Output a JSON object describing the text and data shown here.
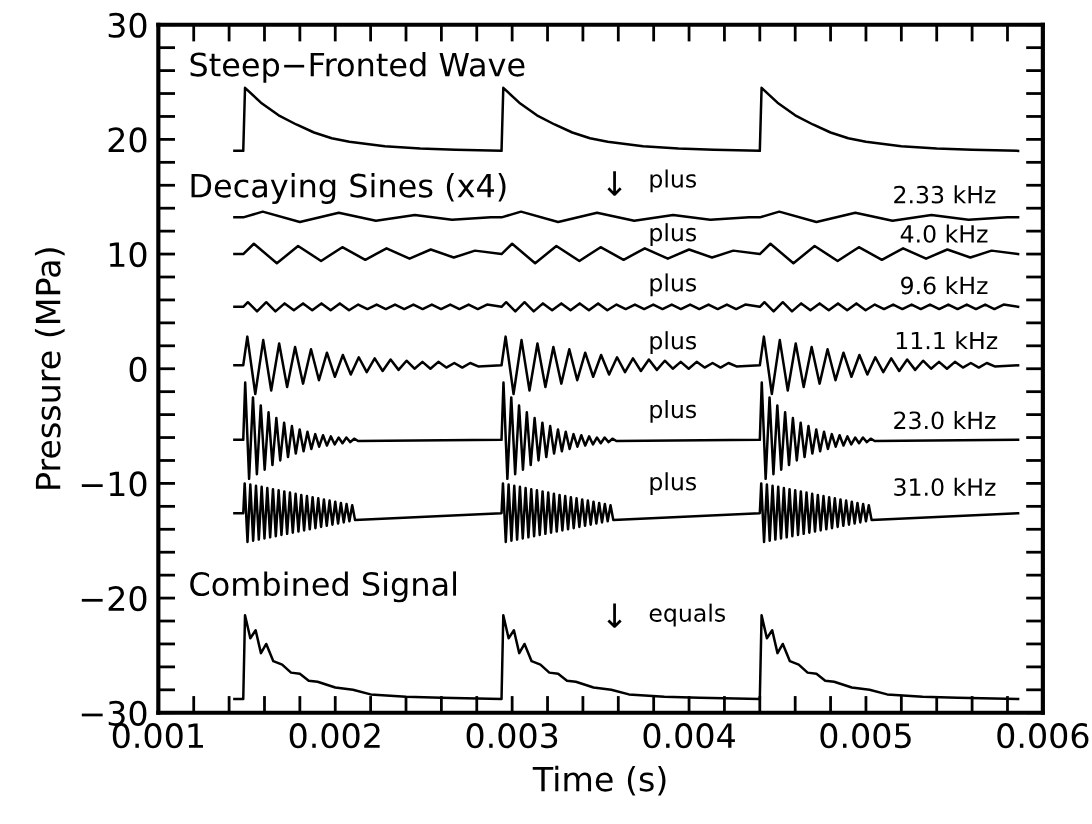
{
  "chart_data": {
    "type": "line",
    "xlabel": "Time (s)",
    "ylabel": "Pressure (MPa)",
    "xlim": [
      0.001,
      0.006
    ],
    "ylim": [
      -30,
      30
    ],
    "xticks": [
      0.001,
      {
        "value": 0.0012,
        "label": null
      },
      {
        "value": 0.0014,
        "label": null
      },
      {
        "value": 0.0016,
        "label": null
      },
      {
        "value": 0.0018,
        "label": null
      },
      0.002,
      {
        "value": 0.0022,
        "label": null
      },
      {
        "value": 0.0024,
        "label": null
      },
      {
        "value": 0.0026,
        "label": null
      },
      {
        "value": 0.0028,
        "label": null
      },
      0.003,
      {
        "value": 0.0032,
        "label": null
      },
      {
        "value": 0.0034,
        "label": null
      },
      {
        "value": 0.0036,
        "label": null
      },
      {
        "value": 0.0038,
        "label": null
      },
      0.004,
      {
        "value": 0.0042,
        "label": null
      },
      {
        "value": 0.0044,
        "label": null
      },
      {
        "value": 0.0046,
        "label": null
      },
      {
        "value": 0.0048,
        "label": null
      },
      0.005,
      {
        "value": 0.0052,
        "label": null
      },
      {
        "value": 0.0054,
        "label": null
      },
      {
        "value": 0.0056,
        "label": null
      },
      {
        "value": 0.0058,
        "label": null
      },
      0.006
    ],
    "yticks": [
      {
        "value": -30,
        "label": "−30"
      },
      {
        "value": -28,
        "label": null
      },
      {
        "value": -26,
        "label": null
      },
      {
        "value": -24,
        "label": null
      },
      {
        "value": -22,
        "label": null
      },
      {
        "value": -20,
        "label": "−20"
      },
      {
        "value": -18,
        "label": null
      },
      {
        "value": -16,
        "label": null
      },
      {
        "value": -14,
        "label": null
      },
      {
        "value": -12,
        "label": null
      },
      {
        "value": -10,
        "label": "−10"
      },
      {
        "value": -8,
        "label": null
      },
      {
        "value": -6,
        "label": null
      },
      {
        "value": -4,
        "label": null
      },
      {
        "value": -2,
        "label": null
      },
      0,
      {
        "value": 2,
        "label": null
      },
      {
        "value": 4,
        "label": null
      },
      {
        "value": 6,
        "label": null
      },
      {
        "value": 8,
        "label": null
      },
      10,
      {
        "value": 12,
        "label": null
      },
      {
        "value": 14,
        "label": null
      },
      {
        "value": 16,
        "label": null
      },
      {
        "value": 18,
        "label": null
      },
      20,
      {
        "value": 22,
        "label": null
      },
      {
        "value": 24,
        "label": null
      },
      {
        "value": 26,
        "label": null
      },
      {
        "value": 28,
        "label": null
      },
      30
    ],
    "grid": false,
    "legend": false,
    "marker": "none",
    "line_style": "solid",
    "series": [
      {
        "color": "#000000",
        "x": [
          0.00143,
          0.00148,
          0.00149,
          0.00158,
          0.00168,
          0.00178,
          0.00188,
          0.00198,
          0.00208,
          0.00228,
          0.00248,
          0.00268,
          0.00294,
          0.00295,
          0.00304,
          0.00314,
          0.00324,
          0.00334,
          0.00344,
          0.00354,
          0.00374,
          0.00394,
          0.00414,
          0.0044,
          0.00441,
          0.0045,
          0.0046,
          0.0047,
          0.0048,
          0.0049,
          0.005,
          0.0052,
          0.0054,
          0.0056,
          0.00586
        ],
        "values": [
          19,
          19,
          24.5,
          23.2,
          22.1,
          21.3,
          20.6,
          20.1,
          19.8,
          19.4,
          19.2,
          19.1,
          19,
          24.5,
          23.2,
          22.1,
          21.3,
          20.6,
          20.1,
          19.8,
          19.4,
          19.2,
          19.1,
          19,
          24.5,
          23.2,
          22.1,
          21.3,
          20.6,
          20.1,
          19.8,
          19.4,
          19.2,
          19.1,
          19
        ]
      },
      {
        "color": "#000000",
        "x": [
          0.00143,
          0.00148,
          0.00159,
          0.0018,
          0.00202,
          0.00223,
          0.00245,
          0.00266,
          0.00288,
          0.00294,
          0.00305,
          0.00326,
          0.00348,
          0.00369,
          0.00391,
          0.00412,
          0.00434,
          0.0044,
          0.00451,
          0.00472,
          0.00494,
          0.00515,
          0.00537,
          0.00558,
          0.0058,
          0.00586
        ],
        "values": [
          13.2,
          13.2,
          13.7,
          12.8,
          13.6,
          12.9,
          13.4,
          13.0,
          13.2,
          13.2,
          13.7,
          12.8,
          13.6,
          12.9,
          13.4,
          13.0,
          13.2,
          13.2,
          13.7,
          12.8,
          13.6,
          12.9,
          13.4,
          13.0,
          13.2,
          13.2
        ]
      },
      {
        "color": "#000000",
        "x": [
          0.00143,
          0.00148,
          0.00154,
          0.00167,
          0.00179,
          0.00192,
          0.00204,
          0.00217,
          0.00229,
          0.00242,
          0.00254,
          0.00267,
          0.00279,
          0.00294,
          0.003,
          0.00313,
          0.00325,
          0.00338,
          0.0035,
          0.00363,
          0.00375,
          0.00388,
          0.004,
          0.00413,
          0.00425,
          0.0044,
          0.00446,
          0.00459,
          0.00471,
          0.00484,
          0.00496,
          0.00509,
          0.00521,
          0.00534,
          0.00546,
          0.00559,
          0.00571,
          0.00586
        ],
        "values": [
          10,
          10,
          10.9,
          9.2,
          10.7,
          9.4,
          10.6,
          9.5,
          10.5,
          9.6,
          10.4,
          9.7,
          10.3,
          10,
          10.9,
          9.2,
          10.7,
          9.4,
          10.6,
          9.5,
          10.5,
          9.6,
          10.4,
          9.7,
          10.3,
          10,
          10.9,
          9.2,
          10.7,
          9.4,
          10.6,
          9.5,
          10.5,
          9.6,
          10.4,
          9.7,
          10.3,
          10
        ]
      },
      {
        "color": "#000000",
        "x": [
          0.00143,
          0.00148,
          0.001506,
          0.001558,
          0.00161,
          0.001662,
          0.001714,
          0.001766,
          0.001818,
          0.00187,
          0.001922,
          0.001974,
          0.002026,
          0.002078,
          0.00213,
          0.002182,
          0.002234,
          0.002286,
          0.002338,
          0.00239,
          0.002442,
          0.002494,
          0.002546,
          0.002598,
          0.00265,
          0.002702,
          0.002754,
          0.002806,
          0.002858,
          0.00294,
          0.002966,
          0.003018,
          0.00307,
          0.003122,
          0.003174,
          0.003226,
          0.003278,
          0.00333,
          0.003382,
          0.003434,
          0.003486,
          0.003538,
          0.00359,
          0.003642,
          0.003694,
          0.003746,
          0.003798,
          0.00385,
          0.003902,
          0.003954,
          0.004006,
          0.004058,
          0.00411,
          0.004162,
          0.004214,
          0.004266,
          0.004318,
          0.0044,
          0.004426,
          0.004478,
          0.00453,
          0.004582,
          0.004634,
          0.004686,
          0.004738,
          0.00479,
          0.004842,
          0.004894,
          0.004946,
          0.004998,
          0.00505,
          0.005102,
          0.005154,
          0.005206,
          0.005258,
          0.00531,
          0.005362,
          0.005414,
          0.005466,
          0.005518,
          0.00557,
          0.005622,
          0.005674,
          0.005726,
          0.005778,
          0.00586
        ],
        "values": [
          5.4,
          5.4,
          5.8,
          5.0,
          5.8,
          5.0,
          5.7,
          5.1,
          5.7,
          5.1,
          5.7,
          5.1,
          5.7,
          5.1,
          5.6,
          5.2,
          5.6,
          5.2,
          5.6,
          5.2,
          5.6,
          5.2,
          5.6,
          5.2,
          5.6,
          5.2,
          5.6,
          5.2,
          5.6,
          5.4,
          5.8,
          5.0,
          5.8,
          5.0,
          5.7,
          5.1,
          5.7,
          5.1,
          5.7,
          5.1,
          5.7,
          5.1,
          5.6,
          5.2,
          5.6,
          5.2,
          5.6,
          5.2,
          5.6,
          5.2,
          5.6,
          5.2,
          5.6,
          5.2,
          5.6,
          5.2,
          5.6,
          5.4,
          5.8,
          5.0,
          5.8,
          5.0,
          5.7,
          5.1,
          5.7,
          5.1,
          5.7,
          5.1,
          5.7,
          5.1,
          5.6,
          5.2,
          5.6,
          5.2,
          5.6,
          5.2,
          5.6,
          5.2,
          5.6,
          5.2,
          5.6,
          5.2,
          5.6,
          5.2,
          5.6,
          5.4
        ]
      },
      {
        "color": "#000000",
        "x": [
          0.00143,
          0.00148,
          0.001503,
          0.001548,
          0.001593,
          0.001638,
          0.001683,
          0.001728,
          0.001773,
          0.001818,
          0.001863,
          0.001908,
          0.001953,
          0.001998,
          0.002043,
          0.002088,
          0.002133,
          0.002178,
          0.002223,
          0.002268,
          0.002313,
          0.002358,
          0.002403,
          0.002448,
          0.002493,
          0.002538,
          0.002583,
          0.002628,
          0.002673,
          0.002718,
          0.002763,
          0.002808,
          0.00294,
          0.002963,
          0.003008,
          0.003053,
          0.003098,
          0.003143,
          0.003188,
          0.003233,
          0.003278,
          0.003323,
          0.003368,
          0.003413,
          0.003458,
          0.003503,
          0.003548,
          0.003593,
          0.003638,
          0.003683,
          0.003728,
          0.003773,
          0.003818,
          0.003863,
          0.003908,
          0.003953,
          0.003998,
          0.004043,
          0.004088,
          0.004133,
          0.004178,
          0.004223,
          0.004268,
          0.0044,
          0.004423,
          0.004468,
          0.004513,
          0.004558,
          0.004603,
          0.004648,
          0.004693,
          0.004738,
          0.004783,
          0.004828,
          0.004873,
          0.004918,
          0.004963,
          0.005008,
          0.005053,
          0.005098,
          0.005143,
          0.005188,
          0.005233,
          0.005278,
          0.005323,
          0.005368,
          0.005413,
          0.005458,
          0.005503,
          0.005548,
          0.005593,
          0.005638,
          0.005683,
          0.005728,
          0.00586
        ],
        "values": [
          0.3,
          0.3,
          2.8,
          -2.2,
          2.5,
          -1.9,
          2.2,
          -1.6,
          1.9,
          -1.3,
          1.7,
          -1.0,
          1.4,
          -0.7,
          1.2,
          -0.5,
          1.0,
          -0.3,
          0.9,
          -0.2,
          0.8,
          -0.1,
          0.7,
          0,
          0.6,
          0,
          0.6,
          0.1,
          0.5,
          0.1,
          0.5,
          0.2,
          0.3,
          2.8,
          -2.2,
          2.5,
          -1.9,
          2.2,
          -1.6,
          1.9,
          -1.3,
          1.7,
          -1.0,
          1.4,
          -0.7,
          1.2,
          -0.5,
          1.0,
          -0.3,
          0.9,
          -0.2,
          0.8,
          -0.1,
          0.7,
          0,
          0.6,
          0,
          0.6,
          0.1,
          0.5,
          0.1,
          0.5,
          0.2,
          0.3,
          2.8,
          -2.2,
          2.5,
          -1.9,
          2.2,
          -1.6,
          1.9,
          -1.3,
          1.7,
          -1.0,
          1.4,
          -0.7,
          1.2,
          -0.5,
          1.0,
          -0.3,
          0.9,
          -0.2,
          0.8,
          -0.1,
          0.7,
          0,
          0.6,
          0,
          0.6,
          0.1,
          0.5,
          0.1,
          0.5,
          0.2,
          0.3
        ]
      },
      {
        "color": "#000000",
        "x": [
          0.00143,
          0.00148,
          0.001491,
          0.001513,
          0.001535,
          0.001557,
          0.001579,
          0.001601,
          0.001623,
          0.001645,
          0.001667,
          0.001689,
          0.001711,
          0.001733,
          0.001755,
          0.001777,
          0.001799,
          0.001821,
          0.001843,
          0.001865,
          0.001887,
          0.001909,
          0.001931,
          0.001953,
          0.001975,
          0.001997,
          0.002019,
          0.002041,
          0.002063,
          0.002085,
          0.002107,
          0.002129,
          0.00294,
          0.002951,
          0.002973,
          0.002995,
          0.003017,
          0.003039,
          0.003061,
          0.003083,
          0.003105,
          0.003127,
          0.003149,
          0.003171,
          0.003193,
          0.003215,
          0.003237,
          0.003259,
          0.003281,
          0.003303,
          0.003325,
          0.003347,
          0.003369,
          0.003391,
          0.003413,
          0.003435,
          0.003457,
          0.003479,
          0.003501,
          0.003523,
          0.003545,
          0.003567,
          0.003589,
          0.0044,
          0.004411,
          0.004433,
          0.004455,
          0.004477,
          0.004499,
          0.004521,
          0.004543,
          0.004565,
          0.004587,
          0.004609,
          0.004631,
          0.004653,
          0.004675,
          0.004697,
          0.004719,
          0.004741,
          0.004763,
          0.004785,
          0.004807,
          0.004829,
          0.004851,
          0.004873,
          0.004895,
          0.004917,
          0.004939,
          0.004961,
          0.004983,
          0.005005,
          0.005027,
          0.005049,
          0.00586
        ],
        "values": [
          -6.2,
          -6.2,
          -1.2,
          -9.6,
          -2.5,
          -9.2,
          -3.2,
          -8.8,
          -3.8,
          -8.4,
          -4.3,
          -8.0,
          -4.7,
          -7.7,
          -5.0,
          -7.4,
          -5.3,
          -7.2,
          -5.5,
          -7.0,
          -5.7,
          -6.8,
          -5.8,
          -6.7,
          -5.9,
          -6.6,
          -6.0,
          -6.5,
          -6.0,
          -6.4,
          -6.1,
          -6.3,
          -6.2,
          -1.2,
          -9.6,
          -2.5,
          -9.2,
          -3.2,
          -8.8,
          -3.8,
          -8.4,
          -4.3,
          -8.0,
          -4.7,
          -7.7,
          -5.0,
          -7.4,
          -5.3,
          -7.2,
          -5.5,
          -7.0,
          -5.7,
          -6.8,
          -5.8,
          -6.7,
          -5.9,
          -6.6,
          -6.0,
          -6.5,
          -6.0,
          -6.4,
          -6.1,
          -6.3,
          -6.2,
          -1.2,
          -9.6,
          -2.5,
          -9.2,
          -3.2,
          -8.8,
          -3.8,
          -8.4,
          -4.3,
          -8.0,
          -4.7,
          -7.7,
          -5.0,
          -7.4,
          -5.3,
          -7.2,
          -5.5,
          -7.0,
          -5.7,
          -6.8,
          -5.8,
          -6.7,
          -5.9,
          -6.6,
          -6.0,
          -6.5,
          -6.0,
          -6.4,
          -6.1,
          -6.3,
          -6.2
        ]
      },
      {
        "color": "#000000",
        "x": [
          0.00143,
          0.00148,
          0.001488,
          0.001504,
          0.00152,
          0.001536,
          0.001552,
          0.001568,
          0.001584,
          0.0016,
          0.001616,
          0.001632,
          0.001648,
          0.001664,
          0.00168,
          0.001696,
          0.001712,
          0.001728,
          0.001744,
          0.00176,
          0.001776,
          0.001792,
          0.001808,
          0.001824,
          0.00184,
          0.001856,
          0.001872,
          0.001888,
          0.001904,
          0.00192,
          0.001936,
          0.001952,
          0.001968,
          0.001984,
          0.002,
          0.002016,
          0.002032,
          0.002048,
          0.002064,
          0.00208,
          0.002096,
          0.002112,
          0.00294,
          0.002948,
          0.002964,
          0.00298,
          0.002996,
          0.003012,
          0.003028,
          0.003044,
          0.00306,
          0.003076,
          0.003092,
          0.003108,
          0.003124,
          0.00314,
          0.003156,
          0.003172,
          0.003188,
          0.003204,
          0.00322,
          0.003236,
          0.003252,
          0.003268,
          0.003284,
          0.0033,
          0.003316,
          0.003332,
          0.003348,
          0.003364,
          0.00338,
          0.003396,
          0.003412,
          0.003428,
          0.003444,
          0.00346,
          0.003476,
          0.003492,
          0.003508,
          0.003524,
          0.00354,
          0.003556,
          0.003572,
          0.0044,
          0.004408,
          0.004424,
          0.00444,
          0.004456,
          0.004472,
          0.004488,
          0.004504,
          0.00452,
          0.004536,
          0.004552,
          0.004568,
          0.004584,
          0.0046,
          0.004616,
          0.004632,
          0.004648,
          0.004664,
          0.00468,
          0.004696,
          0.004712,
          0.004728,
          0.004744,
          0.00476,
          0.004776,
          0.004792,
          0.004808,
          0.004824,
          0.00484,
          0.004856,
          0.004872,
          0.004888,
          0.004904,
          0.00492,
          0.004936,
          0.004952,
          0.004968,
          0.004984,
          0.005,
          0.005016,
          0.005032,
          0.00586
        ],
        "values": [
          -12.6,
          -12.6,
          -10.0,
          -15.1,
          -10.1,
          -15.0,
          -10.2,
          -14.9,
          -10.3,
          -14.8,
          -10.4,
          -14.7,
          -10.5,
          -14.6,
          -10.6,
          -14.5,
          -10.7,
          -14.4,
          -10.8,
          -14.3,
          -10.9,
          -14.2,
          -11.0,
          -14.1,
          -11.1,
          -14.0,
          -11.2,
          -13.9,
          -11.3,
          -13.8,
          -11.4,
          -13.7,
          -11.5,
          -13.6,
          -11.6,
          -13.5,
          -11.7,
          -13.4,
          -11.8,
          -13.3,
          -11.9,
          -13.2,
          -12.6,
          -10.0,
          -15.1,
          -10.1,
          -15.0,
          -10.2,
          -14.9,
          -10.3,
          -14.8,
          -10.4,
          -14.7,
          -10.5,
          -14.6,
          -10.6,
          -14.5,
          -10.7,
          -14.4,
          -10.8,
          -14.3,
          -10.9,
          -14.2,
          -11.0,
          -14.1,
          -11.1,
          -14.0,
          -11.2,
          -13.9,
          -11.3,
          -13.8,
          -11.4,
          -13.7,
          -11.5,
          -13.6,
          -11.6,
          -13.5,
          -11.7,
          -13.4,
          -11.8,
          -13.3,
          -11.9,
          -13.2,
          -12.6,
          -10.0,
          -15.1,
          -10.1,
          -15.0,
          -10.2,
          -14.9,
          -10.3,
          -14.8,
          -10.4,
          -14.7,
          -10.5,
          -14.6,
          -10.6,
          -14.5,
          -10.7,
          -14.4,
          -10.8,
          -14.3,
          -10.9,
          -14.2,
          -11.0,
          -14.1,
          -11.1,
          -14.0,
          -11.2,
          -13.9,
          -11.3,
          -13.8,
          -11.4,
          -13.7,
          -11.5,
          -13.6,
          -11.6,
          -13.5,
          -11.7,
          -13.4,
          -11.8,
          -13.3,
          -11.9,
          -13.2,
          -12.6
        ]
      },
      {
        "color": "#000000",
        "x": [
          0.00143,
          0.00148,
          0.00149,
          0.00152,
          0.00155,
          0.00158,
          0.00161,
          0.00165,
          0.0017,
          0.00175,
          0.0018,
          0.00185,
          0.0019,
          0.002,
          0.0021,
          0.0022,
          0.0024,
          0.0026,
          0.00294,
          0.00295,
          0.00298,
          0.00301,
          0.00304,
          0.00307,
          0.00311,
          0.00316,
          0.00321,
          0.00326,
          0.00331,
          0.00336,
          0.00346,
          0.00356,
          0.00366,
          0.00386,
          0.00406,
          0.0044,
          0.00441,
          0.00444,
          0.00447,
          0.0045,
          0.00453,
          0.00457,
          0.00462,
          0.00467,
          0.00472,
          0.00477,
          0.00482,
          0.00492,
          0.00502,
          0.00512,
          0.00532,
          0.00552,
          0.00586
        ],
        "values": [
          -28.8,
          -28.8,
          -21.5,
          -23.5,
          -22.8,
          -24.8,
          -24.0,
          -25.5,
          -25.8,
          -26.5,
          -26.6,
          -27.2,
          -27.3,
          -27.8,
          -28.0,
          -28.4,
          -28.6,
          -28.7,
          -28.8,
          -21.5,
          -23.5,
          -22.8,
          -24.8,
          -24.0,
          -25.5,
          -25.8,
          -26.5,
          -26.6,
          -27.2,
          -27.3,
          -27.8,
          -28.0,
          -28.4,
          -28.6,
          -28.7,
          -28.8,
          -21.5,
          -23.5,
          -22.8,
          -24.8,
          -24.0,
          -25.5,
          -25.8,
          -26.5,
          -26.6,
          -27.2,
          -27.3,
          -27.8,
          -28.0,
          -28.4,
          -28.6,
          -28.7,
          -28.8
        ]
      }
    ],
    "annotations": [
      "Steep−Fronted Wave",
      "Decaying Sines (x4)",
      "↓",
      "plus",
      "2.33 kHz",
      "plus",
      "4.0 kHz",
      "plus",
      "9.6 kHz",
      "plus",
      "11.1 kHz",
      "plus",
      "23.0 kHz",
      "plus",
      "31.0 kHz",
      "Combined Signal",
      "↓",
      "equals"
    ]
  }
}
